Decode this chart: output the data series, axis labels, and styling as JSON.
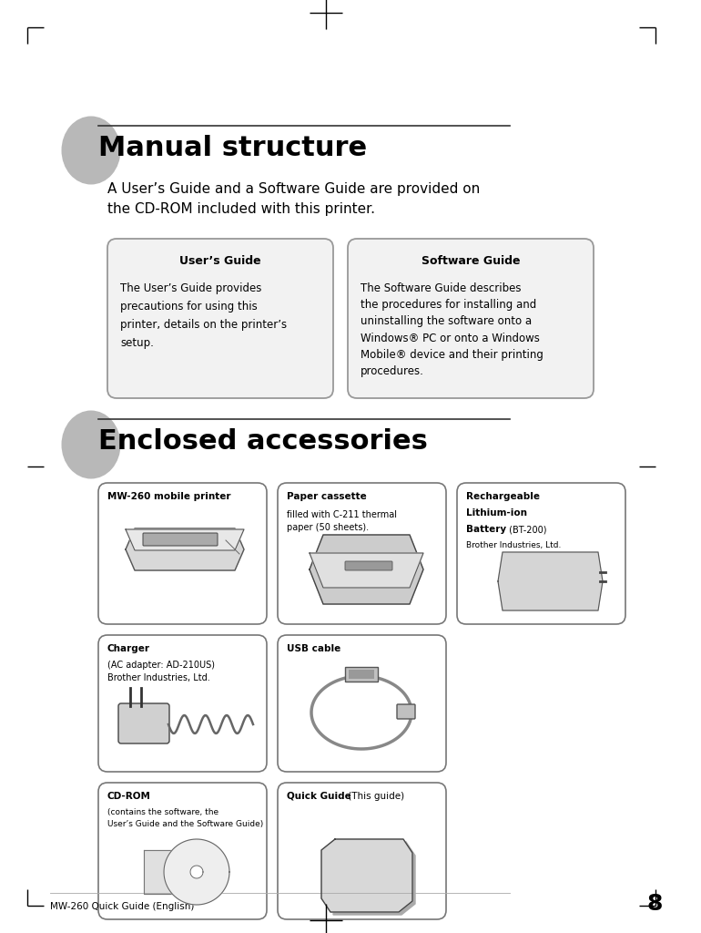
{
  "page_bg": "#ffffff",
  "page_width": 7.7,
  "page_height": 10.24,
  "section1_title": "Manual structure",
  "section1_subtitle": "A User’s Guide and a Software Guide are provided on\nthe CD-ROM included with this printer.",
  "box1_title": "User’s Guide",
  "box1_text": "The User’s Guide provides\nprecautions for using this\nprinter, details on the printer’s\nsetup.",
  "box2_title": "Software Guide",
  "box2_text": "The Software Guide describes\nthe procedures for installing and\nuninstalling the software onto a\nWindows® PC or onto a Windows\nMobile® device and their printing\nprocedures.",
  "section2_title": "Enclosed accessories",
  "acc_box1_title": "MW-260 mobile printer",
  "acc_box2_title": "Paper cassette",
  "acc_box2_text": "filled with C-211 thermal\npaper (50 sheets).",
  "acc_box3_title1": "Rechargeable",
  "acc_box3_title2": "Lithium-ion",
  "acc_box3_title3": "Battery",
  "acc_box3_title3b": " (BT-200)",
  "acc_box3_text": "Brother Industries, Ltd.",
  "acc_box4_title": "Charger",
  "acc_box4_text": "(AC adapter: AD-210US)\nBrother Industries, Ltd.",
  "acc_box5_title": "USB cable",
  "acc_box6_title": "CD-ROM",
  "acc_box6_text": "(contains the software, the\nUser’s Guide and the Software Guide)",
  "acc_box7_title": "Quick Guide",
  "acc_box7_text": " (This guide)",
  "footer_text": "MW-260 Quick Guide (English)",
  "page_number": "8",
  "ellipse_color": "#b8b8b8",
  "box_edge": "#888888",
  "title_color": "#000000"
}
